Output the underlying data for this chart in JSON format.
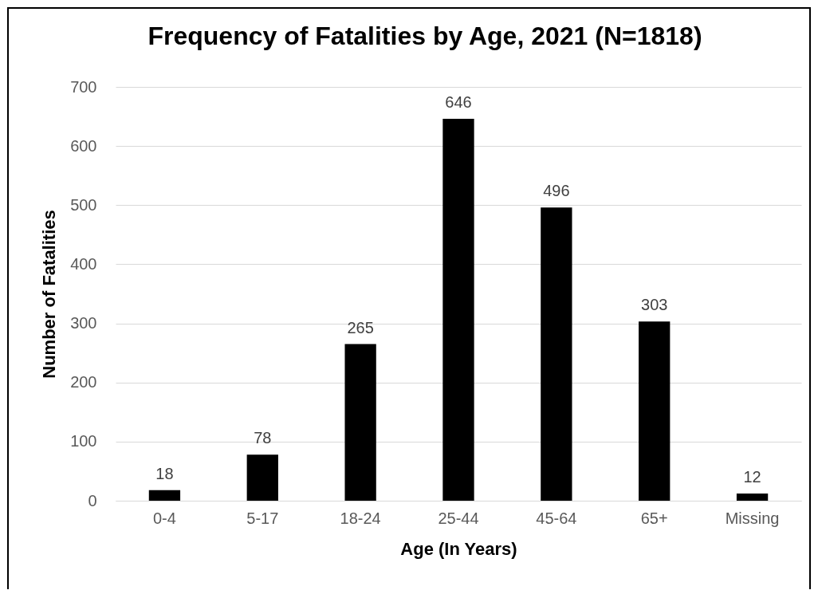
{
  "chart_data": {
    "type": "bar",
    "title": "Frequency of Fatalities by Age, 2021 (N=1818)",
    "xlabel": "Age (In Years)",
    "ylabel": "Number of Fatalities",
    "categories": [
      "0-4",
      "5-17",
      "18-24",
      "25-44",
      "45-64",
      "65+",
      "Missing"
    ],
    "values": [
      18,
      78,
      265,
      646,
      496,
      303,
      12
    ],
    "color": "#000000",
    "ylim": [
      0,
      700
    ],
    "yticks": [
      0,
      100,
      200,
      300,
      400,
      500,
      600,
      700
    ],
    "grid": "y",
    "data_labels": true
  }
}
